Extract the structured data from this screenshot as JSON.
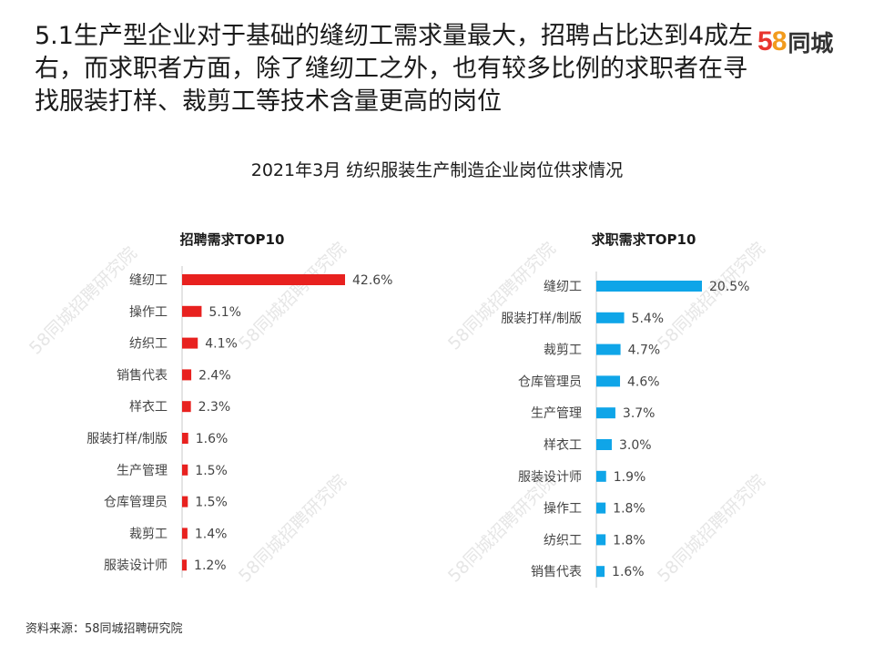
{
  "headline": "5.1生产型企业对于基础的缝纫工需求量最大，招聘占比达到4成左右，而求职者方面，除了缝纫工之外，也有较多比例的求职者在寻找服装打样、裁剪工等技术含量更高的岗位",
  "logo": {
    "number": "58",
    "digit_5": "5",
    "digit_8": "8",
    "text": "同城"
  },
  "chart_title": "2021年3月 纺织服装生产制造企业岗位供求情况",
  "source": "资料来源：58同城招聘研究院",
  "watermark_text": "58同城招聘研究院",
  "chart_data": [
    {
      "type": "bar",
      "orientation": "horizontal",
      "title": "招聘需求TOP10",
      "color": "#e8211f",
      "unit": "%",
      "categories": [
        "缝纫工",
        "操作工",
        "纺织工",
        "销售代表",
        "样衣工",
        "服装打样/制版",
        "生产管理",
        "仓库管理员",
        "裁剪工",
        "服装设计师"
      ],
      "values": [
        42.6,
        5.1,
        4.1,
        2.4,
        2.3,
        1.6,
        1.5,
        1.5,
        1.4,
        1.2
      ],
      "labels": [
        "42.6%",
        "5.1%",
        "4.1%",
        "2.4%",
        "2.3%",
        "1.6%",
        "1.5%",
        "1.5%",
        "1.4%",
        "1.2%"
      ],
      "xlim": [
        0,
        42.6
      ],
      "grid": false
    },
    {
      "type": "bar",
      "orientation": "horizontal",
      "title": "求职需求TOP10",
      "color": "#0fa5e8",
      "unit": "%",
      "categories": [
        "缝纫工",
        "服装打样/制版",
        "裁剪工",
        "仓库管理员",
        "生产管理",
        "样衣工",
        "服装设计师",
        "操作工",
        "纺织工",
        "销售代表"
      ],
      "values": [
        20.5,
        5.4,
        4.7,
        4.6,
        3.7,
        3.0,
        1.9,
        1.8,
        1.8,
        1.6
      ],
      "labels": [
        "20.5%",
        "5.4%",
        "4.7%",
        "4.6%",
        "3.7%",
        "3.0%",
        "1.9%",
        "1.8%",
        "1.8%",
        "1.6%"
      ],
      "xlim": [
        0,
        20.5
      ],
      "grid": false
    }
  ]
}
